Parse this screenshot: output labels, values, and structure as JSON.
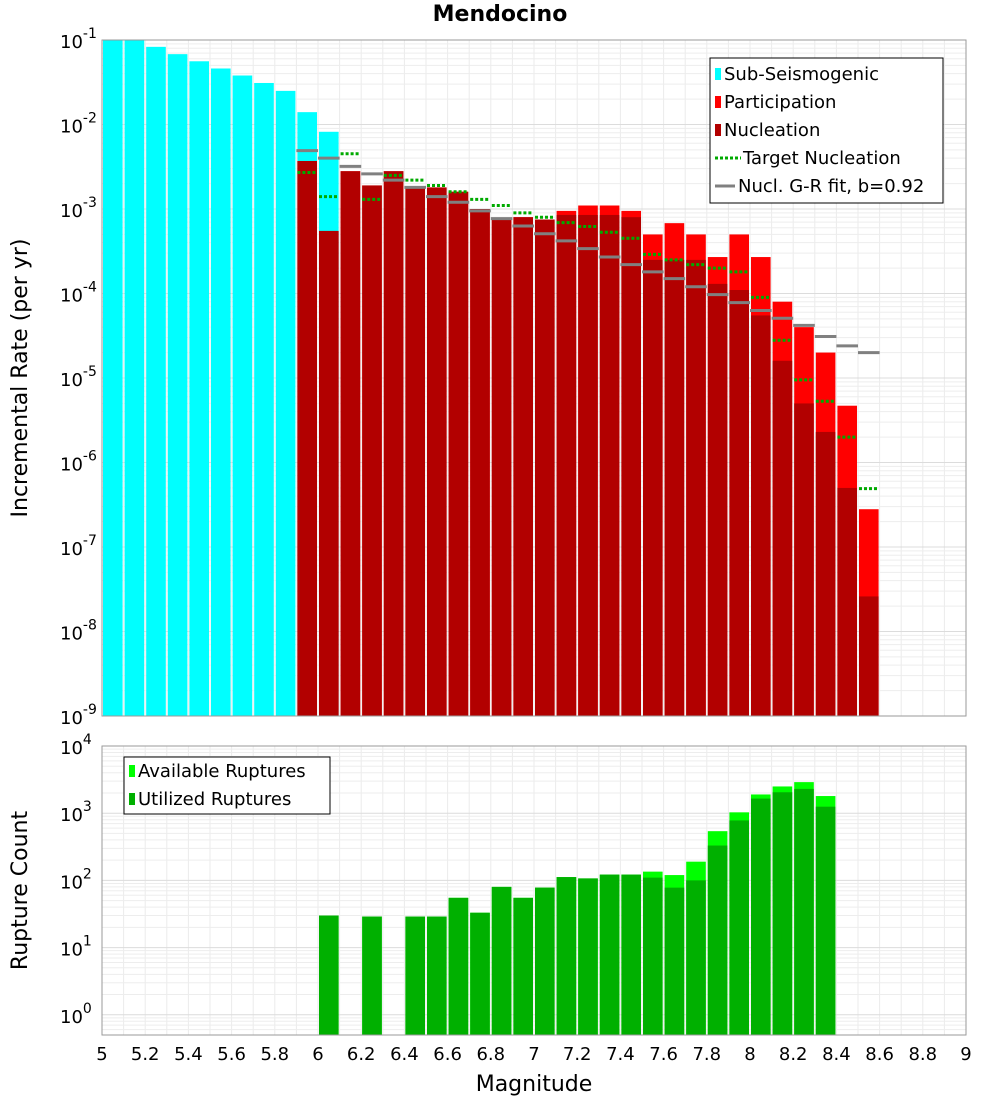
{
  "title": "Mendocino",
  "chart_data": [
    {
      "type": "bar",
      "title": "Mendocino",
      "ylabel": "Incremental Rate (per yr)",
      "xlabel": "",
      "yscale": "log",
      "ylim": [
        1e-09,
        0.1
      ],
      "xlim": [
        5,
        9
      ],
      "grid": true,
      "legend_position": "top-right",
      "y_tick_labels": [
        {
          "base": "10",
          "exp": "-9"
        },
        {
          "base": "10",
          "exp": "-8"
        },
        {
          "base": "10",
          "exp": "-7"
        },
        {
          "base": "10",
          "exp": "-6"
        },
        {
          "base": "10",
          "exp": "-5"
        },
        {
          "base": "10",
          "exp": "-4"
        },
        {
          "base": "10",
          "exp": "-3"
        },
        {
          "base": "10",
          "exp": "-2"
        },
        {
          "base": "10",
          "exp": "-1"
        }
      ],
      "legend": [
        {
          "label": "Sub-Seismogenic",
          "color": "#00ffff",
          "style": "bar"
        },
        {
          "label": "Participation",
          "color": "#ff0000",
          "style": "bar"
        },
        {
          "label": "Nucleation",
          "color": "#b20000",
          "style": "bar"
        },
        {
          "label": " Target Nucleation",
          "color": "#00aa00",
          "style": "dotted"
        },
        {
          "label": "Nucl. G-R fit, b=0.92",
          "color": "#808080",
          "style": "line"
        }
      ],
      "series": [
        {
          "name": "Sub-Seismogenic",
          "color": "#00ffff",
          "x": [
            5.05,
            5.15,
            5.25,
            5.35,
            5.45,
            5.55,
            5.65,
            5.75,
            5.85,
            5.95,
            6.05
          ],
          "values": [
            0.1,
            0.1,
            0.083,
            0.068,
            0.056,
            0.046,
            0.038,
            0.031,
            0.025,
            0.014,
            0.0082
          ]
        },
        {
          "name": "Participation",
          "color": "#ff0000",
          "x": [
            5.95,
            6.05,
            6.15,
            6.25,
            6.35,
            6.45,
            6.55,
            6.65,
            6.75,
            6.85,
            6.95,
            7.05,
            7.15,
            7.25,
            7.35,
            7.45,
            7.55,
            7.65,
            7.75,
            7.85,
            7.95,
            8.05,
            8.15,
            8.25,
            8.35,
            8.45,
            8.55
          ],
          "values": [
            0.0037,
            0.00055,
            0.0028,
            0.0019,
            0.0028,
            0.0018,
            0.0018,
            0.0016,
            0.001,
            0.00075,
            0.0008,
            0.00075,
            0.00095,
            0.0011,
            0.0011,
            0.00095,
            0.0005,
            0.00068,
            0.0005,
            0.00027,
            0.0005,
            0.00027,
            8e-05,
            4e-05,
            2e-05,
            4.7e-06,
            2.8e-07
          ]
        },
        {
          "name": "Nucleation",
          "color": "#b20000",
          "x": [
            5.95,
            6.05,
            6.15,
            6.25,
            6.35,
            6.45,
            6.55,
            6.65,
            6.75,
            6.85,
            6.95,
            7.05,
            7.15,
            7.25,
            7.35,
            7.45,
            7.55,
            7.65,
            7.75,
            7.85,
            7.95,
            8.05,
            8.15,
            8.25,
            8.35,
            8.45,
            8.55
          ],
          "values": [
            0.0037,
            0.00055,
            0.0028,
            0.0019,
            0.0028,
            0.0018,
            0.0018,
            0.0016,
            0.001,
            0.00075,
            0.0008,
            0.00075,
            0.00085,
            0.00085,
            0.00085,
            0.0008,
            0.00025,
            0.00025,
            0.00025,
            0.00013,
            0.00011,
            5.5e-05,
            1.6e-05,
            5e-06,
            2.3e-06,
            5e-07,
            2.6e-08
          ]
        },
        {
          "name": " Target Nucleation",
          "color": "#00aa00",
          "style": "dotted",
          "x": [
            5.95,
            6.05,
            6.15,
            6.25,
            6.35,
            6.45,
            6.55,
            6.65,
            6.75,
            6.85,
            6.95,
            7.05,
            7.15,
            7.25,
            7.35,
            7.45,
            7.55,
            7.65,
            7.75,
            7.85,
            7.95,
            8.05,
            8.15,
            8.25,
            8.35,
            8.45,
            8.55
          ],
          "values": [
            0.0027,
            0.0014,
            0.0045,
            0.0013,
            0.0025,
            0.0022,
            0.0019,
            0.0016,
            0.0013,
            0.0011,
            0.0009,
            0.0008,
            0.00069,
            0.00062,
            0.00053,
            0.00045,
            0.00029,
            0.00025,
            0.00022,
            0.0002,
            0.00018,
            9e-05,
            2.8e-05,
            9.5e-06,
            5.3e-06,
            2e-06,
            4.9e-07
          ]
        },
        {
          "name": "Nucl. G-R fit, b=0.92",
          "color": "#808080",
          "style": "line",
          "x": [
            5.95,
            6.05,
            6.15,
            6.25,
            6.35,
            6.45,
            6.55,
            6.65,
            6.75,
            6.85,
            6.95,
            7.05,
            7.15,
            7.25,
            7.35,
            7.45,
            7.55,
            7.65,
            7.75,
            7.85,
            7.95,
            8.05,
            8.15,
            8.25,
            8.35,
            8.45,
            8.55
          ],
          "values": [
            0.0049,
            0.004,
            0.0032,
            0.0026,
            0.0022,
            0.0018,
            0.0014,
            0.0012,
            0.00095,
            0.00077,
            0.00063,
            0.00051,
            0.00042,
            0.00034,
            0.00027,
            0.00022,
            0.00018,
            0.00015,
            0.00012,
            9.7e-05,
            7.8e-05,
            6.3e-05,
            5.1e-05,
            4.2e-05,
            3.1e-05,
            2.4e-05,
            2e-05
          ]
        }
      ]
    },
    {
      "type": "bar",
      "xlabel": "Magnitude",
      "ylabel": "Rupture Count",
      "yscale": "log",
      "ylim": [
        0.5,
        10000
      ],
      "xlim": [
        5,
        9
      ],
      "grid": true,
      "legend_position": "top-left",
      "x_tick_labels": [
        "5",
        "5.2",
        "5.4",
        "5.6",
        "5.8",
        "6",
        "6.2",
        "6.4",
        "6.6",
        "6.8",
        "7",
        "7.2",
        "7.4",
        "7.6",
        "7.8",
        "8",
        "8.2",
        "8.4",
        "8.6",
        "8.8",
        "9"
      ],
      "y_tick_labels": [
        {
          "base": "10",
          "exp": "0"
        },
        {
          "base": "10",
          "exp": "1"
        },
        {
          "base": "10",
          "exp": "2"
        },
        {
          "base": "10",
          "exp": "3"
        },
        {
          "base": "10",
          "exp": "4"
        }
      ],
      "legend": [
        {
          "label": "Available Ruptures",
          "color": "#00ff00"
        },
        {
          "label": "Utilized Ruptures",
          "color": "#00b000"
        }
      ],
      "series": [
        {
          "name": "Available Ruptures",
          "color": "#00ff00",
          "x": [
            6.05,
            6.25,
            6.45,
            6.55,
            6.65,
            6.75,
            6.85,
            6.95,
            7.05,
            7.15,
            7.25,
            7.35,
            7.45,
            7.55,
            7.65,
            7.75,
            7.85,
            7.95,
            8.05,
            8.15,
            8.25,
            8.35
          ],
          "values": [
            30,
            29,
            29,
            29,
            55,
            33,
            80,
            55,
            78,
            112,
            107,
            122,
            122,
            135,
            120,
            190,
            540,
            1030,
            1900,
            2500,
            2900,
            1800
          ]
        },
        {
          "name": "Utilized Ruptures",
          "color": "#00b000",
          "x": [
            6.05,
            6.25,
            6.45,
            6.55,
            6.65,
            6.75,
            6.85,
            6.95,
            7.05,
            7.15,
            7.25,
            7.35,
            7.45,
            7.55,
            7.65,
            7.75,
            7.85,
            7.95,
            8.05,
            8.15,
            8.25,
            8.35
          ],
          "values": [
            30,
            29,
            29,
            29,
            55,
            33,
            80,
            55,
            78,
            112,
            107,
            122,
            122,
            110,
            78,
            100,
            330,
            780,
            1650,
            2050,
            2300,
            1250
          ]
        }
      ]
    }
  ]
}
